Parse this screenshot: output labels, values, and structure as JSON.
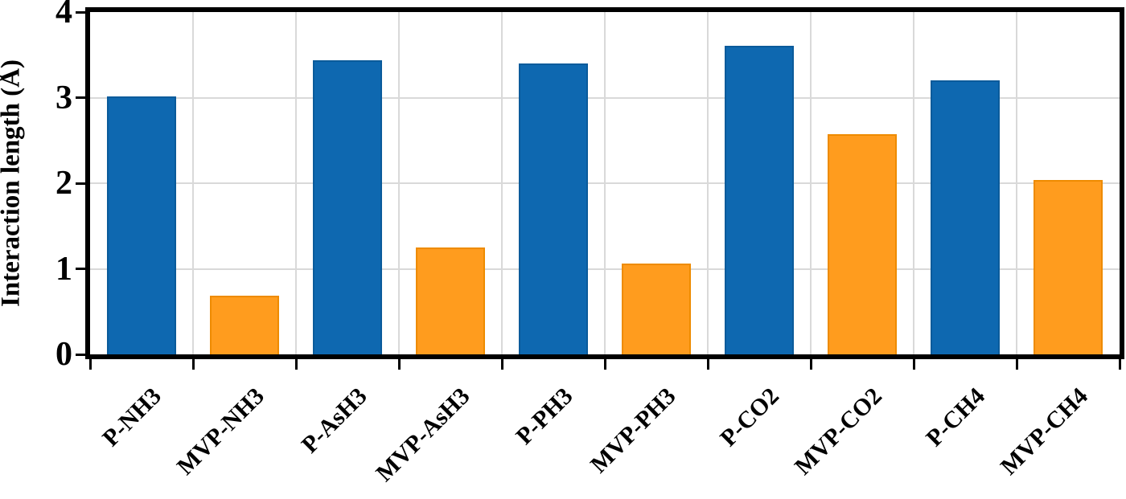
{
  "figure": {
    "background": "#ffffff",
    "frame_color": "#000000",
    "gridline_color": "#d9d9d9"
  },
  "chart_data": {
    "type": "bar",
    "title": "",
    "xlabel": "",
    "ylabel": "Interaction length (Å)",
    "ylim": [
      0,
      4
    ],
    "yticks": [
      "0",
      "1",
      "2",
      "3",
      "4"
    ],
    "grid": true,
    "legend": "none",
    "bars": [
      {
        "label": "P-NH3",
        "value": 3.01,
        "series": "P"
      },
      {
        "label": "MVP-NH3",
        "value": 0.69,
        "series": "MVP"
      },
      {
        "label": "P-AsH3",
        "value": 3.44,
        "series": "P"
      },
      {
        "label": "MVP-AsH3",
        "value": 1.25,
        "series": "MVP"
      },
      {
        "label": "P-PH3",
        "value": 3.4,
        "series": "P"
      },
      {
        "label": "MVP-PH3",
        "value": 1.06,
        "series": "MVP"
      },
      {
        "label": "P-CO2",
        "value": 3.61,
        "series": "P"
      },
      {
        "label": "MVP-CO2",
        "value": 2.57,
        "series": "MVP"
      },
      {
        "label": "P-CH4",
        "value": 3.2,
        "series": "P"
      },
      {
        "label": "MVP-CH4",
        "value": 2.04,
        "series": "MVP"
      }
    ],
    "series": {
      "P": {
        "fill": "#0e68b0",
        "border": "#0a5b9b"
      },
      "MVP": {
        "fill": "#ff9c1e",
        "border": "#ee8b00"
      }
    }
  }
}
